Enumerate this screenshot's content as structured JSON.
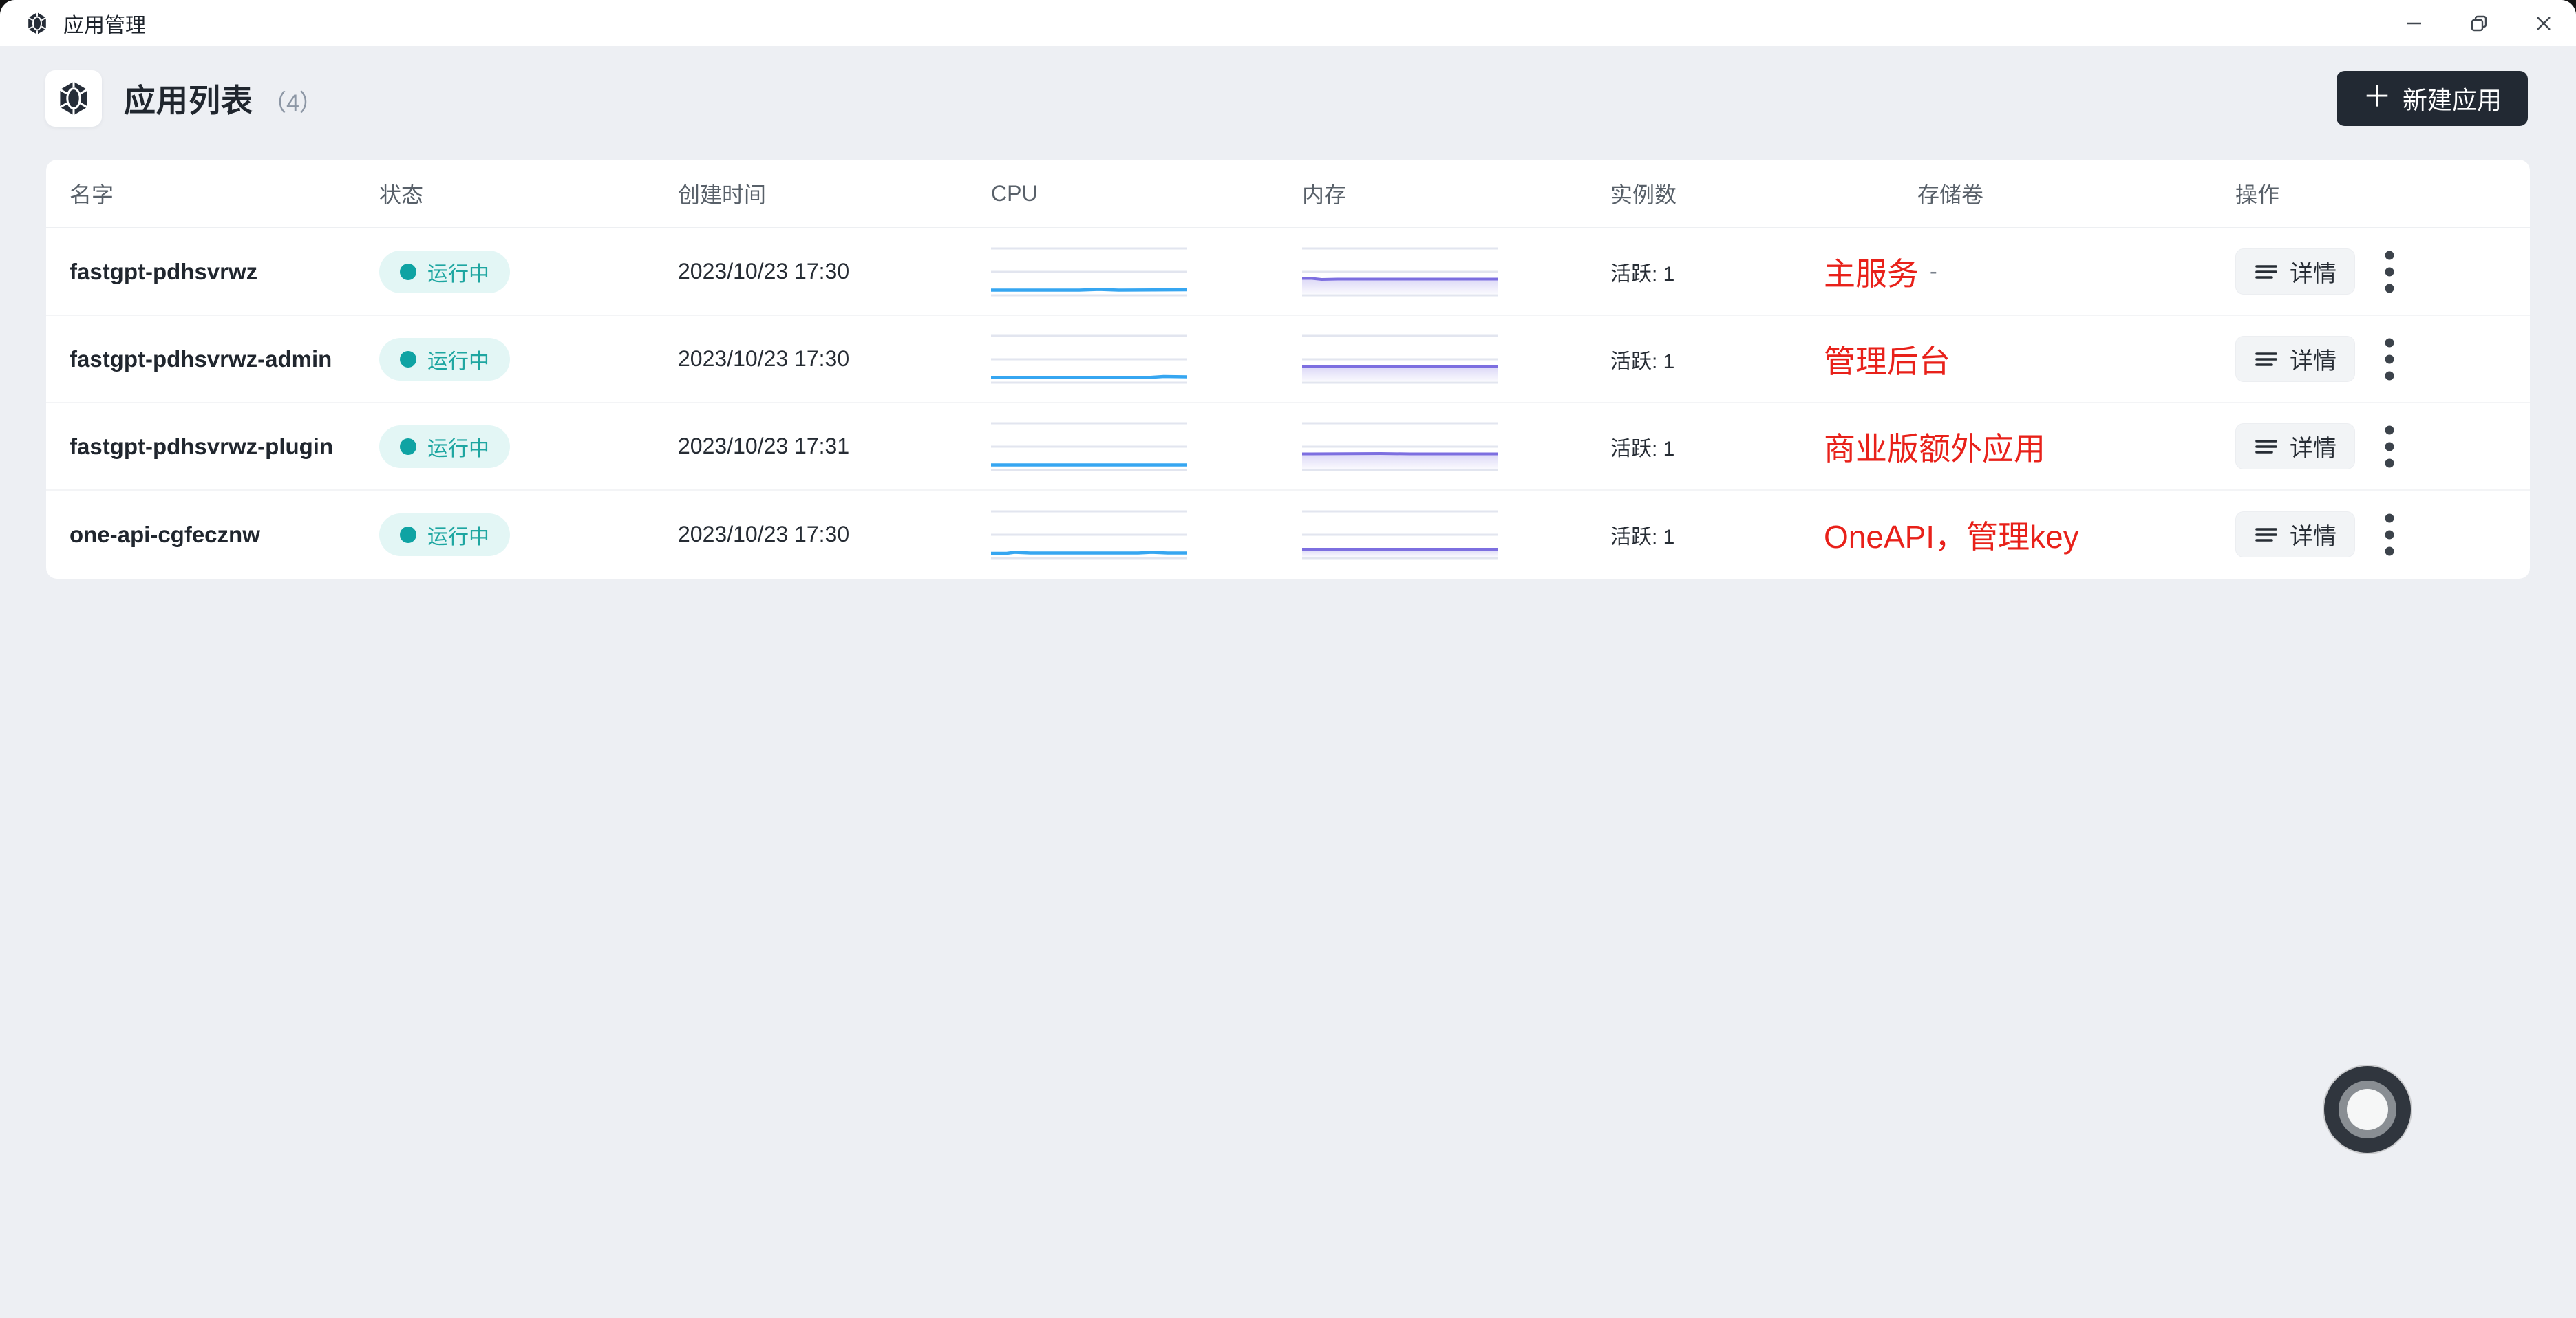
{
  "titlebar": {
    "title": "应用管理"
  },
  "header": {
    "title": "应用列表",
    "count": "（4）",
    "new_button_label": "新建应用",
    "plus": "＋"
  },
  "table": {
    "columns": [
      "名字",
      "状态",
      "创建时间",
      "CPU",
      "内存",
      "实例数",
      "存储卷",
      "操作"
    ],
    "rows": [
      {
        "name": "fastgpt-pdhsvrwz",
        "status": "运行中",
        "created": "2023/10/23 17:30",
        "instances": "活跃: 1",
        "storage_value": "-",
        "annotation": "主服务",
        "detail": "详情",
        "cpu_points": [
          [
            0,
            62.5
          ],
          [
            45,
            62.5
          ],
          [
            55,
            61.5
          ],
          [
            65,
            62.5
          ],
          [
            100,
            62
          ]
        ],
        "mem_points": [
          [
            0,
            45.5
          ],
          [
            5,
            45.5
          ],
          [
            10,
            47
          ],
          [
            18,
            46.5
          ],
          [
            100,
            46.5
          ]
        ]
      },
      {
        "name": "fastgpt-pdhsvrwz-admin",
        "status": "运行中",
        "created": "2023/10/23 17:30",
        "instances": "活跃: 1",
        "storage_value": "",
        "annotation": "管理后台",
        "detail": "详情",
        "cpu_points": [
          [
            0,
            62.5
          ],
          [
            80,
            62.5
          ],
          [
            88,
            61
          ],
          [
            100,
            61.5
          ]
        ],
        "mem_points": [
          [
            0,
            46.5
          ],
          [
            100,
            46.5
          ]
        ]
      },
      {
        "name": "fastgpt-pdhsvrwz-plugin",
        "status": "运行中",
        "created": "2023/10/23 17:31",
        "instances": "活跃: 1",
        "storage_value": "",
        "annotation": "商业版额外应用",
        "detail": "详情",
        "cpu_points": [
          [
            0,
            62.5
          ],
          [
            100,
            62.5
          ]
        ],
        "mem_points": [
          [
            0,
            46.5
          ],
          [
            40,
            46
          ],
          [
            55,
            46.5
          ],
          [
            100,
            46.5
          ]
        ]
      },
      {
        "name": "one-api-cgfecznw",
        "status": "运行中",
        "created": "2023/10/23 17:30",
        "instances": "活跃: 1",
        "storage_value": "",
        "annotation": "OneAPI，管理key",
        "detail": "详情",
        "cpu_points": [
          [
            0,
            63
          ],
          [
            8,
            63
          ],
          [
            12,
            61.5
          ],
          [
            20,
            62.5
          ],
          [
            75,
            62.5
          ],
          [
            82,
            61.5
          ],
          [
            90,
            62.5
          ],
          [
            100,
            62.5
          ]
        ],
        "mem_points": [
          [
            0,
            57
          ],
          [
            100,
            57
          ]
        ]
      }
    ]
  },
  "colors": {
    "status_teal": "#0fa3a3",
    "annotation_red": "#e8211a",
    "cpu_line_blue": "#36a6f1",
    "memory_line_purple": "#7d6fe0",
    "primary_button_dark": "#222933",
    "gridline": "#e2e5ef"
  }
}
